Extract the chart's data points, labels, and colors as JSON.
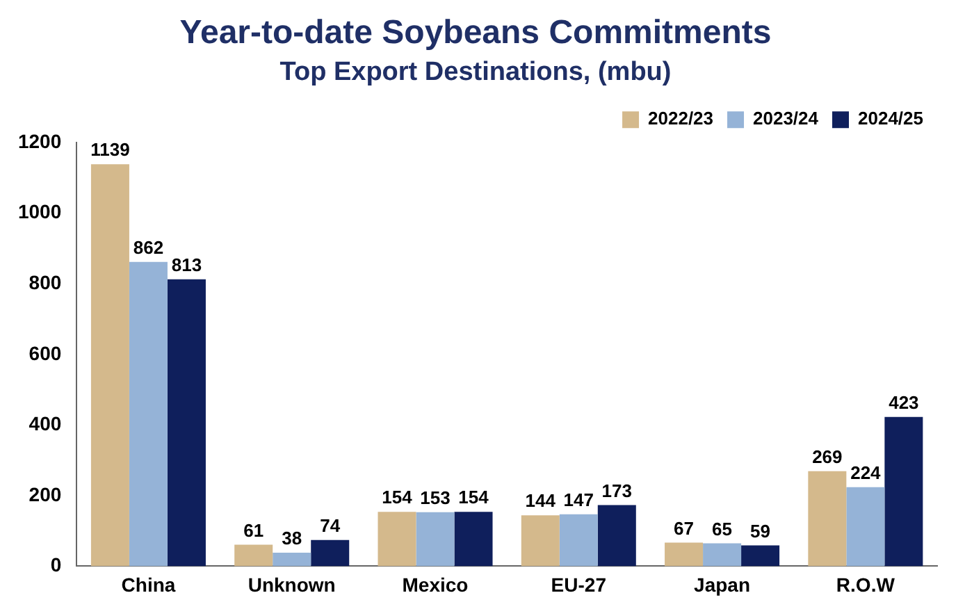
{
  "chart_data": {
    "type": "bar",
    "title": "Year-to-date Soybeans Commitments",
    "subtitle": "Top Export Destinations, (mbu)",
    "categories": [
      "China",
      "Unknown",
      "Mexico",
      "EU-27",
      "Japan",
      "R.O.W"
    ],
    "series": [
      {
        "name": "2022/23",
        "color": "#d4b98c",
        "values": [
          1139,
          61,
          154,
          144,
          67,
          269
        ]
      },
      {
        "name": "2023/24",
        "color": "#95b3d7",
        "values": [
          862,
          38,
          153,
          147,
          65,
          224
        ]
      },
      {
        "name": "2024/25",
        "color": "#0f1f5c",
        "values": [
          813,
          74,
          154,
          173,
          59,
          423
        ]
      }
    ],
    "ylim": [
      0,
      1200
    ],
    "yticks": [
      0,
      200,
      400,
      600,
      800,
      1000,
      1200
    ],
    "grid": false,
    "legend": "top right",
    "data_labels": true
  }
}
